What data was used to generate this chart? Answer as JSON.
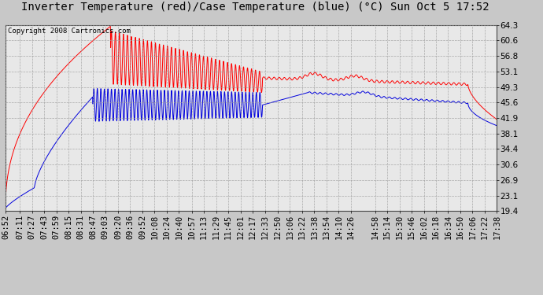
{
  "title": "Inverter Temperature (red)/Case Temperature (blue) (°C) Sun Oct 5 17:52",
  "copyright": "Copyright 2008 Cartronics.com",
  "y_ticks": [
    19.4,
    23.1,
    26.9,
    30.6,
    34.4,
    38.1,
    41.9,
    45.6,
    49.3,
    53.1,
    56.8,
    60.6,
    64.3
  ],
  "ylim": [
    19.4,
    64.3
  ],
  "background_color": "#c8c8c8",
  "plot_bg_color": "#e8e8e8",
  "grid_color": "#999999",
  "red_color": "#ff0000",
  "blue_color": "#0000dd",
  "title_fontsize": 10,
  "copyright_fontsize": 6.5,
  "tick_fontsize": 7.5,
  "xtick_labels": [
    "06:52",
    "07:11",
    "07:27",
    "07:43",
    "07:59",
    "08:15",
    "08:31",
    "08:47",
    "09:03",
    "09:20",
    "09:36",
    "09:52",
    "10:08",
    "10:24",
    "10:40",
    "10:57",
    "11:13",
    "11:29",
    "11:45",
    "12:01",
    "12:17",
    "12:33",
    "12:50",
    "13:06",
    "13:22",
    "13:38",
    "13:54",
    "14:10",
    "14:26",
    "14:58",
    "15:14",
    "15:30",
    "15:46",
    "16:02",
    "16:18",
    "16:34",
    "16:50",
    "17:06",
    "17:22",
    "17:38"
  ]
}
